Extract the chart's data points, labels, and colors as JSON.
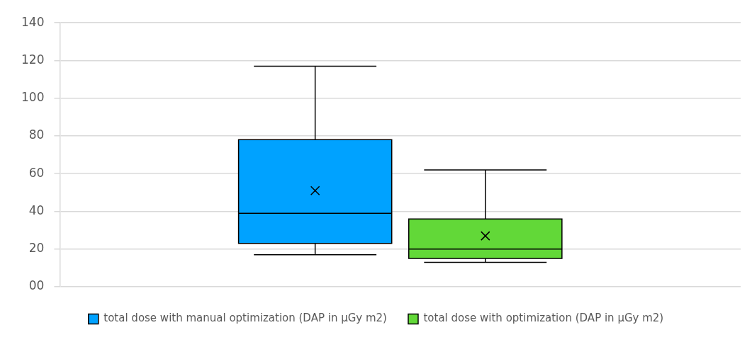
{
  "chart_data": {
    "type": "box",
    "categories": [
      null
    ],
    "series": [
      {
        "name": "total dose with manual optimization (DAP in μGy m2)",
        "color": "#00a2ff",
        "boxes": [
          {
            "low": 17,
            "q1": 23,
            "median": 39,
            "q3": 78,
            "high": 117,
            "mean": 51
          }
        ]
      },
      {
        "name": "total dose with optimization (DAP in μGy m2)",
        "color": "#62d838",
        "boxes": [
          {
            "low": 13,
            "q1": 15,
            "median": 20,
            "q3": 36,
            "high": 62,
            "mean": 27
          }
        ]
      }
    ],
    "ylim": [
      0,
      140
    ],
    "yticks": [
      {
        "value": 0,
        "label": "00"
      },
      20,
      40,
      60,
      80,
      100,
      120,
      140
    ],
    "grid": "y",
    "legend": "bottom",
    "tick_labels": "y",
    "marker": "cross"
  }
}
